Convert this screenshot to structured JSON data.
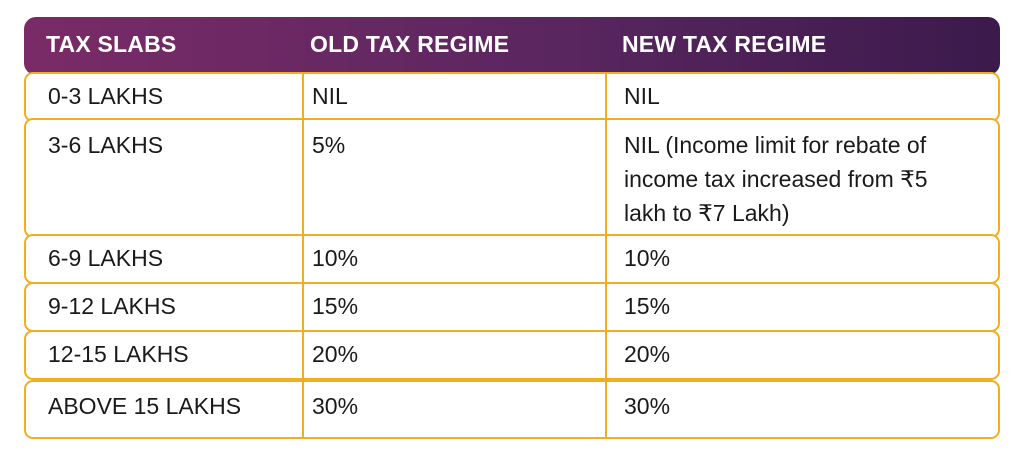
{
  "header": {
    "col1": "TAX SLABS",
    "col2": "OLD TAX REGIME",
    "col3": "NEW TAX REGIME"
  },
  "rows": [
    {
      "slab": "0-3 LAKHS",
      "old": "NIL",
      "new": "NIL"
    },
    {
      "slab": "3-6 LAKHS",
      "old": "5%",
      "new": "NIL (Income limit for rebate of income tax increased from ₹5 lakh to ₹7 Lakh)"
    },
    {
      "slab": "6-9 LAKHS",
      "old": "10%",
      "new": "10%"
    },
    {
      "slab": "9-12 LAKHS",
      "old": "15%",
      "new": "15%"
    },
    {
      "slab": "12-15 LAKHS",
      "old": "20%",
      "new": "20%"
    },
    {
      "slab": "ABOVE 15 LAKHS",
      "old": "30%",
      "new": "30%"
    }
  ],
  "colors": {
    "header_start": "#7a2b67",
    "header_end": "#3b1a4c",
    "border": "#f2ae1f"
  }
}
